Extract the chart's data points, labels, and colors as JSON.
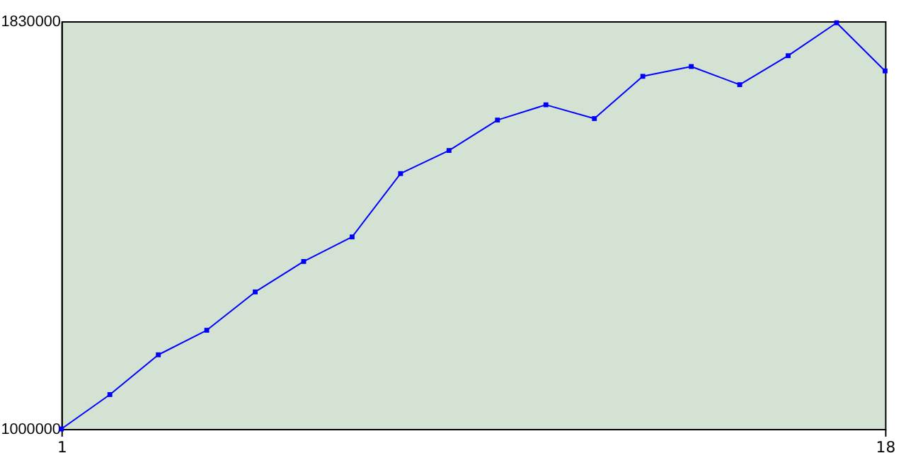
{
  "chart_data": {
    "type": "line",
    "x": [
      1,
      2,
      3,
      4,
      5,
      6,
      7,
      8,
      9,
      10,
      11,
      12,
      13,
      14,
      15,
      16,
      17,
      18
    ],
    "series": [
      {
        "color": "#0000ff",
        "values": [
          1000000,
          1070000,
          1151000,
          1201000,
          1279000,
          1341000,
          1391000,
          1520000,
          1567000,
          1629000,
          1660000,
          1632000,
          1718000,
          1738000,
          1701000,
          1760000,
          1827000,
          1729000
        ]
      }
    ],
    "xlim": [
      1,
      18
    ],
    "xticks": [
      1,
      18
    ],
    "ylim": [
      1000000,
      1830000
    ],
    "yticks": [
      1000000,
      1830000
    ],
    "grid": false,
    "legend": false,
    "marker": "square",
    "line_style": "solid"
  }
}
